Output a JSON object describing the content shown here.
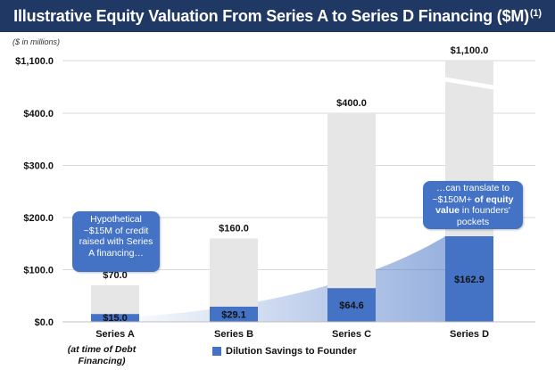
{
  "title": "Illustrative Equity Valuation From Series A to Series D Financing ($M)",
  "title_sup": "(1)",
  "units_note": "($ in millions)",
  "colors": {
    "title_bg": "#1f3864",
    "total_bar": "#e6e6e6",
    "savings_bar": "#4472c4",
    "shade": "#4472c4"
  },
  "chart_data": {
    "type": "bar",
    "categories": [
      "Series A",
      "Series B",
      "Series C",
      "Series D"
    ],
    "y_tick_labels": [
      "$0.0",
      "$100.0",
      "$200.0",
      "$300.0",
      "$400.0",
      "$1,100.0"
    ],
    "axis_break": true,
    "grid": true,
    "series": [
      {
        "name": "",
        "values": [
          70.0,
          160.0,
          400.0,
          1100.0
        ],
        "labels": [
          "$70.0",
          "$160.0",
          "$400.0",
          "$1,100.0"
        ]
      },
      {
        "name": "Dilution Savings to Founder",
        "values": [
          15.0,
          29.1,
          64.6,
          162.9
        ],
        "labels": [
          "$15.0",
          "$29.1",
          "$64.6",
          "$162.9"
        ]
      }
    ],
    "legend_position": "bottom"
  },
  "sub_note": "(at time of Debt Financing)",
  "callout_a": [
    "Hypothetical",
    "~$15M of credit",
    "raised with Series",
    "A financing…"
  ],
  "callout_d": {
    "line1": "…can translate to",
    "line2_pre": "~$150M+",
    "line2_bold": " of equity",
    "line3_bold": "value",
    "line3_post": " in founders'",
    "line4": "pockets"
  }
}
